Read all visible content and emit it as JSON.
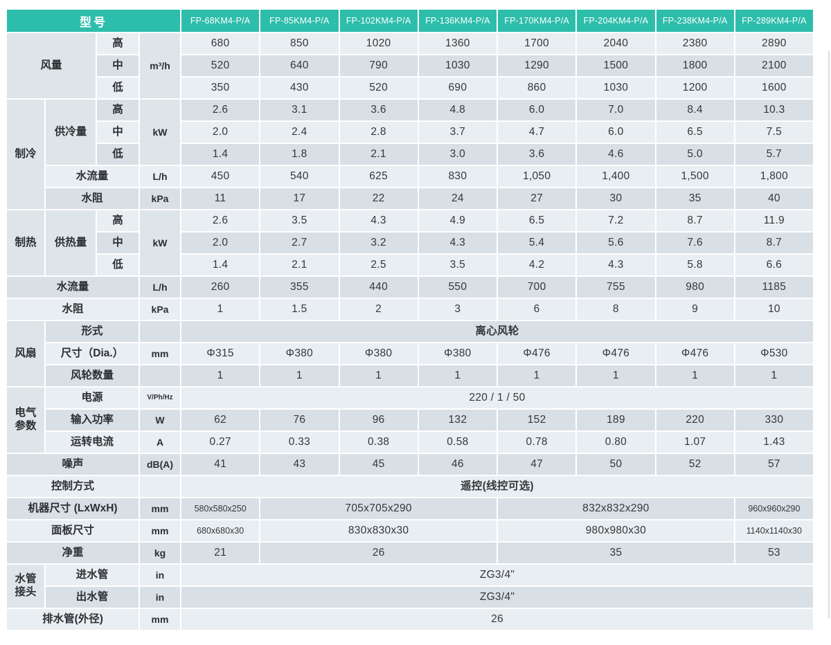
{
  "colors": {
    "accent": "#2dbdab",
    "row_light": "#e9eef2",
    "row_dark": "#d8dfe5",
    "row_mid": "#dee5e9"
  },
  "header": {
    "corner_label": "型号",
    "models": [
      "FP-68KM4-P/A",
      "FP-85KM4-P/A",
      "FP-102KM4-P/A",
      "FP-136KM4-P/A",
      "FP-170KM4-P/A",
      "FP-204KM4-P/A",
      "FP-238KM4-P/A",
      "FP-289KM4-P/A"
    ]
  },
  "body_rows": [
    [
      {
        "t": "风量",
        "cs": 2,
        "rs": 3,
        "k": "section"
      },
      {
        "t": "高",
        "k": "label"
      },
      {
        "t": "m³/h",
        "rs": 3,
        "k": "unit"
      },
      "680",
      "850",
      "1020",
      "1360",
      "1700",
      "2040",
      "2380",
      "2890"
    ],
    [
      {
        "t": "中",
        "k": "label"
      },
      "520",
      "640",
      "790",
      "1030",
      "1290",
      "1500",
      "1800",
      "2100"
    ],
    [
      {
        "t": "低",
        "k": "label"
      },
      "350",
      "430",
      "520",
      "690",
      "860",
      "1030",
      "1200",
      "1600"
    ],
    [
      {
        "t": "制冷",
        "rs": 5,
        "k": "section"
      },
      {
        "t": "供冷量",
        "rs": 3,
        "k": "section"
      },
      {
        "t": "高",
        "k": "label"
      },
      {
        "t": "kW",
        "rs": 3,
        "k": "unit"
      },
      "2.6",
      "3.1",
      "3.6",
      "4.8",
      "6.0",
      "7.0",
      "8.4",
      "10.3"
    ],
    [
      {
        "t": "中",
        "k": "label"
      },
      "2.0",
      "2.4",
      "2.8",
      "3.7",
      "4.7",
      "6.0",
      "6.5",
      "7.5"
    ],
    [
      {
        "t": "低",
        "k": "label"
      },
      "1.4",
      "1.8",
      "2.1",
      "3.0",
      "3.6",
      "4.6",
      "5.0",
      "5.7"
    ],
    [
      {
        "t": "水流量",
        "cs": 2,
        "k": "label"
      },
      {
        "t": "L/h",
        "k": "unit"
      },
      "450",
      "540",
      "625",
      "830",
      "1,050",
      "1,400",
      "1,500",
      "1,800"
    ],
    [
      {
        "t": "水阻",
        "cs": 2,
        "k": "label"
      },
      {
        "t": "kPa",
        "k": "unit"
      },
      "11",
      "17",
      "22",
      "24",
      "27",
      "30",
      "35",
      "40"
    ],
    [
      {
        "t": "制热",
        "rs": 3,
        "k": "section"
      },
      {
        "t": "供热量",
        "rs": 3,
        "k": "section"
      },
      {
        "t": "高",
        "k": "label"
      },
      {
        "t": "kW",
        "rs": 3,
        "k": "unit"
      },
      "2.6",
      "3.5",
      "4.3",
      "4.9",
      "6.5",
      "7.2",
      "8.7",
      "11.9"
    ],
    [
      {
        "t": "中",
        "k": "label"
      },
      "2.0",
      "2.7",
      "3.2",
      "4.3",
      "5.4",
      "5.6",
      "7.6",
      "8.7"
    ],
    [
      {
        "t": "低",
        "k": "label"
      },
      "1.4",
      "2.1",
      "2.5",
      "3.5",
      "4.2",
      "4.3",
      "5.8",
      "6.6"
    ],
    [
      {
        "t": "水流量",
        "cs": 3,
        "k": "label"
      },
      {
        "t": "L/h",
        "k": "unit"
      },
      "260",
      "355",
      "440",
      "550",
      "700",
      "755",
      "980",
      "1185"
    ],
    [
      {
        "t": "水阻",
        "cs": 3,
        "k": "label"
      },
      {
        "t": "kPa",
        "k": "unit"
      },
      "1",
      "1.5",
      "2",
      "3",
      "6",
      "8",
      "9",
      "10"
    ],
    [
      {
        "t": "风扇",
        "rs": 3,
        "k": "section"
      },
      {
        "t": "形式",
        "cs": 2,
        "k": "label"
      },
      {
        "t": "",
        "k": "unit"
      },
      {
        "t": "离心风轮",
        "cs": 8,
        "b": 1
      }
    ],
    [
      {
        "t": "尺寸（Dia.）",
        "cs": 2,
        "k": "label"
      },
      {
        "t": "mm",
        "k": "unit"
      },
      "Φ315",
      "Φ380",
      "Φ380",
      "Φ380",
      "Φ476",
      "Φ476",
      "Φ476",
      "Φ530"
    ],
    [
      {
        "t": "风轮数量",
        "cs": 2,
        "k": "label"
      },
      {
        "t": "",
        "k": "unit"
      },
      "1",
      "1",
      "1",
      "1",
      "1",
      "1",
      "1",
      "1"
    ],
    [
      {
        "t": "电气\n参数",
        "rs": 3,
        "k": "section"
      },
      {
        "t": "电源",
        "cs": 2,
        "k": "label"
      },
      {
        "t": "V/Ph/Hz",
        "k": "unit",
        "sm": 1
      },
      {
        "t": "220 / 1 / 50",
        "cs": 8
      }
    ],
    [
      {
        "t": "输入功率",
        "cs": 2,
        "k": "label"
      },
      {
        "t": "W",
        "k": "unit"
      },
      "62",
      "76",
      "96",
      "132",
      "152",
      "189",
      "220",
      "330"
    ],
    [
      {
        "t": "运转电流",
        "cs": 2,
        "k": "label"
      },
      {
        "t": "A",
        "k": "unit"
      },
      "0.27",
      "0.33",
      "0.38",
      "0.58",
      "0.78",
      "0.80",
      "1.07",
      "1.43"
    ],
    [
      {
        "t": "噪声",
        "cs": 3,
        "k": "label"
      },
      {
        "t": "dB(A)",
        "k": "unit"
      },
      "41",
      "43",
      "45",
      "46",
      "47",
      "50",
      "52",
      "57"
    ],
    [
      {
        "t": "控制方式",
        "cs": 3,
        "k": "label"
      },
      {
        "t": "",
        "k": "unit"
      },
      {
        "t": "遥控(线控可选)",
        "cs": 8,
        "b": 1
      }
    ],
    [
      {
        "t": "机器尺寸 (LxWxH)",
        "cs": 3,
        "k": "label"
      },
      {
        "t": "mm",
        "k": "unit"
      },
      {
        "t": "580x580x250",
        "sm": 1
      },
      {
        "t": "705x705x290",
        "cs": 3
      },
      {
        "t": "832x832x290",
        "cs": 3
      },
      {
        "t": "960x960x290",
        "sm": 1
      }
    ],
    [
      {
        "t": "面板尺寸",
        "cs": 3,
        "k": "label"
      },
      {
        "t": "mm",
        "k": "unit"
      },
      {
        "t": "680x680x30",
        "sm": 1
      },
      {
        "t": "830x830x30",
        "cs": 3
      },
      {
        "t": "980x980x30",
        "cs": 3
      },
      {
        "t": "1140x1140x30",
        "sm": 1
      }
    ],
    [
      {
        "t": "净重",
        "cs": 3,
        "k": "label"
      },
      {
        "t": "kg",
        "k": "unit"
      },
      "21",
      {
        "t": "26",
        "cs": 3
      },
      {
        "t": "35",
        "cs": 3
      },
      "53"
    ],
    [
      {
        "t": "水管\n接头",
        "rs": 2,
        "k": "section"
      },
      {
        "t": "进水管",
        "cs": 2,
        "k": "label"
      },
      {
        "t": "in",
        "k": "unit"
      },
      {
        "t": "ZG3/4\"",
        "cs": 8
      }
    ],
    [
      {
        "t": "出水管",
        "cs": 2,
        "k": "label"
      },
      {
        "t": "in",
        "k": "unit"
      },
      {
        "t": "ZG3/4\"",
        "cs": 8
      }
    ],
    [
      {
        "t": "排水管(外径)",
        "cs": 3,
        "k": "label"
      },
      {
        "t": "mm",
        "k": "unit"
      },
      {
        "t": "26",
        "cs": 8
      }
    ]
  ]
}
